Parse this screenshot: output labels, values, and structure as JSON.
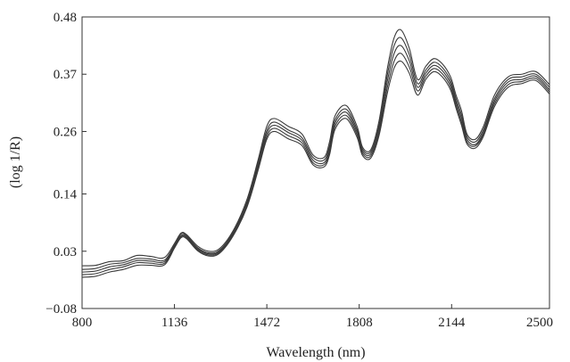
{
  "chart_data": {
    "type": "line",
    "title": "",
    "xlabel": "Wavelength (nm)",
    "ylabel": "(log 1/R)",
    "xlim": [
      800,
      2500
    ],
    "ylim": [
      -0.08,
      0.48
    ],
    "x_ticks": [
      800,
      1136,
      1472,
      1808,
      2144,
      2500
    ],
    "x_tick_labels": [
      "800",
      "1136",
      "1472",
      "1808",
      "2144",
      "2500"
    ],
    "y_ticks": [
      -0.08,
      0.03,
      0.14,
      0.26,
      0.37,
      0.48
    ],
    "y_tick_labels": [
      "−0.08",
      "0.03",
      "0.14",
      "0.26",
      "0.37",
      "0.48"
    ],
    "grid": false,
    "legend": "none",
    "line_color": "#3a3a3a",
    "x": [
      800,
      850,
      900,
      950,
      1000,
      1050,
      1100,
      1136,
      1160,
      1180,
      1220,
      1260,
      1300,
      1350,
      1400,
      1440,
      1472,
      1500,
      1550,
      1600,
      1640,
      1680,
      1700,
      1720,
      1760,
      1800,
      1820,
      1850,
      1880,
      1910,
      1935,
      1960,
      1990,
      2020,
      2050,
      2080,
      2110,
      2140,
      2160,
      2180,
      2200,
      2230,
      2260,
      2300,
      2350,
      2400,
      2450,
      2500
    ],
    "series": [
      {
        "values": [
          0.002,
          0.003,
          0.01,
          0.012,
          0.022,
          0.02,
          0.018,
          0.045,
          0.065,
          0.062,
          0.04,
          0.03,
          0.035,
          0.07,
          0.13,
          0.205,
          0.27,
          0.285,
          0.27,
          0.255,
          0.215,
          0.21,
          0.24,
          0.29,
          0.31,
          0.27,
          0.23,
          0.225,
          0.28,
          0.38,
          0.44,
          0.455,
          0.42,
          0.36,
          0.385,
          0.4,
          0.39,
          0.365,
          0.33,
          0.3,
          0.255,
          0.245,
          0.27,
          0.33,
          0.365,
          0.37,
          0.375,
          0.35
        ]
      },
      {
        "values": [
          -0.005,
          -0.003,
          0.005,
          0.008,
          0.016,
          0.015,
          0.013,
          0.042,
          0.063,
          0.06,
          0.037,
          0.027,
          0.032,
          0.067,
          0.125,
          0.2,
          0.262,
          0.278,
          0.263,
          0.248,
          0.21,
          0.205,
          0.232,
          0.282,
          0.303,
          0.264,
          0.226,
          0.221,
          0.272,
          0.368,
          0.425,
          0.44,
          0.408,
          0.352,
          0.378,
          0.393,
          0.383,
          0.358,
          0.323,
          0.292,
          0.25,
          0.24,
          0.264,
          0.323,
          0.36,
          0.365,
          0.37,
          0.345
        ]
      },
      {
        "values": [
          -0.01,
          -0.008,
          0.0,
          0.004,
          0.012,
          0.011,
          0.01,
          0.04,
          0.06,
          0.058,
          0.035,
          0.025,
          0.03,
          0.065,
          0.122,
          0.195,
          0.256,
          0.272,
          0.258,
          0.243,
          0.205,
          0.2,
          0.226,
          0.276,
          0.297,
          0.259,
          0.222,
          0.217,
          0.265,
          0.356,
          0.41,
          0.425,
          0.396,
          0.345,
          0.372,
          0.387,
          0.377,
          0.352,
          0.317,
          0.285,
          0.245,
          0.235,
          0.259,
          0.318,
          0.355,
          0.36,
          0.366,
          0.34
        ]
      },
      {
        "values": [
          -0.015,
          -0.013,
          -0.005,
          0.0,
          0.008,
          0.007,
          0.007,
          0.038,
          0.058,
          0.056,
          0.033,
          0.023,
          0.028,
          0.062,
          0.118,
          0.19,
          0.25,
          0.266,
          0.252,
          0.238,
          0.2,
          0.196,
          0.22,
          0.27,
          0.291,
          0.254,
          0.218,
          0.213,
          0.258,
          0.344,
          0.395,
          0.41,
          0.384,
          0.338,
          0.366,
          0.381,
          0.371,
          0.346,
          0.311,
          0.278,
          0.24,
          0.232,
          0.255,
          0.313,
          0.35,
          0.356,
          0.362,
          0.336
        ]
      },
      {
        "values": [
          -0.02,
          -0.018,
          -0.01,
          -0.005,
          0.003,
          0.003,
          0.004,
          0.036,
          0.056,
          0.054,
          0.031,
          0.021,
          0.026,
          0.06,
          0.115,
          0.185,
          0.245,
          0.26,
          0.246,
          0.233,
          0.196,
          0.192,
          0.215,
          0.264,
          0.285,
          0.249,
          0.214,
          0.209,
          0.252,
          0.333,
          0.382,
          0.395,
          0.372,
          0.33,
          0.36,
          0.375,
          0.365,
          0.34,
          0.305,
          0.272,
          0.236,
          0.228,
          0.251,
          0.308,
          0.345,
          0.352,
          0.358,
          0.332
        ]
      }
    ]
  }
}
